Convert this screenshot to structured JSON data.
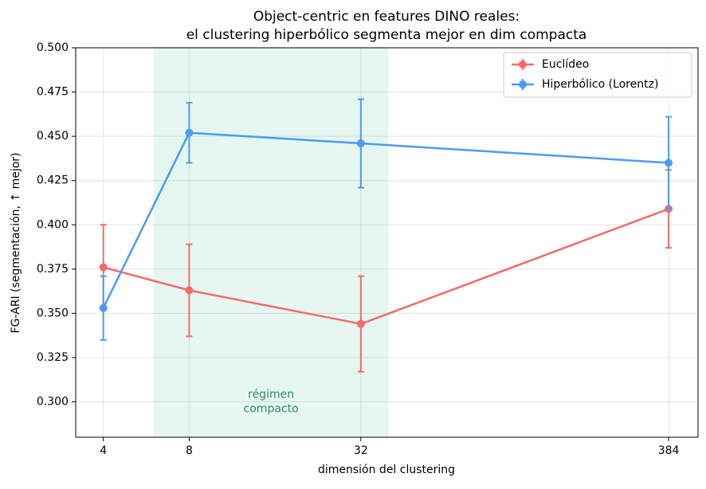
{
  "chart_data": {
    "type": "line",
    "title": [
      "Object-centric en features DINO reales:",
      "el clustering hiperbólico segmenta mejor en dim compacta"
    ],
    "x_label": "dimensión del clustering",
    "y_label": "FG-ARI (segmentación, ↑ mejor)",
    "x": [
      4,
      8,
      32,
      384
    ],
    "x_scale": "log",
    "series": [
      {
        "name": "Euclídeo",
        "color": "#f46b6b",
        "values": [
          0.376,
          0.363,
          0.344,
          0.409
        ],
        "errors": [
          0.024,
          0.026,
          0.027,
          0.022
        ]
      },
      {
        "name": "Hiperbólico (Lorentz)",
        "color": "#4c9bf2",
        "values": [
          0.353,
          0.452,
          0.446,
          0.435
        ],
        "errors": [
          0.018,
          0.017,
          0.025,
          0.026
        ]
      }
    ],
    "xlim": [
      3.2,
      487
    ],
    "xticks": [
      4,
      8,
      32,
      384
    ],
    "ylim": [
      0.28,
      0.5
    ],
    "yticks": [
      {
        "value": 0.3,
        "label": "0.300"
      },
      {
        "value": 0.325,
        "label": "0.325"
      },
      {
        "value": 0.35,
        "label": "0.350"
      },
      {
        "value": 0.375,
        "label": "0.375"
      },
      {
        "value": 0.4,
        "label": "0.400"
      },
      {
        "value": 0.425,
        "label": "0.425"
      },
      {
        "value": 0.45,
        "label": "0.450"
      },
      {
        "value": 0.475,
        "label": "0.475"
      },
      {
        "value": 0.5,
        "label": "0.500"
      }
    ],
    "shaded_span": {
      "x": [
        6,
        40
      ],
      "color": "#e5f7f0",
      "label": [
        "régimen",
        "compacto"
      ],
      "label_color": "#2e8b6b"
    },
    "grid": true,
    "legend": "upper right"
  }
}
